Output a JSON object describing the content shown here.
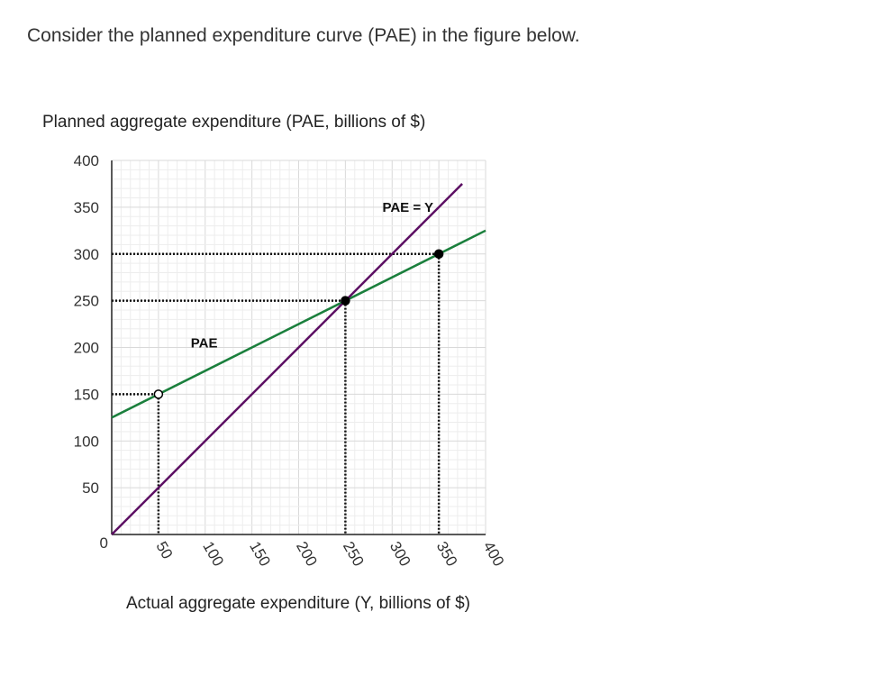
{
  "question": {
    "text": "Consider the planned expenditure curve (PAE) in the figure below."
  },
  "chart_data": {
    "type": "line",
    "title": "",
    "ylabel": "Planned aggregate expenditure (PAE, billions of $)",
    "xlabel": "Actual aggregate expenditure (Y, billions of $)",
    "xlim": [
      0,
      400
    ],
    "ylim": [
      0,
      400
    ],
    "grid": true,
    "x_ticks": [
      50,
      100,
      150,
      200,
      250,
      300,
      350,
      400
    ],
    "y_ticks": [
      0,
      50,
      100,
      150,
      200,
      250,
      300,
      350,
      400
    ],
    "series": [
      {
        "name": "PAE",
        "color": "#1a7f3c",
        "x": [
          0,
          400
        ],
        "y": [
          125,
          325
        ]
      },
      {
        "name": "PAE = Y",
        "color": "#5c0f63",
        "x": [
          0,
          375
        ],
        "y": [
          0,
          375
        ]
      }
    ],
    "points": [
      {
        "x": 50,
        "y": 150,
        "filled": false
      },
      {
        "x": 250,
        "y": 250,
        "filled": true
      },
      {
        "x": 350,
        "y": 300,
        "filled": true
      }
    ],
    "annotations": [
      {
        "text": "PAE",
        "x": 100,
        "y": 205
      },
      {
        "text": "PAE = Y",
        "x": 305,
        "y": 350
      }
    ]
  }
}
